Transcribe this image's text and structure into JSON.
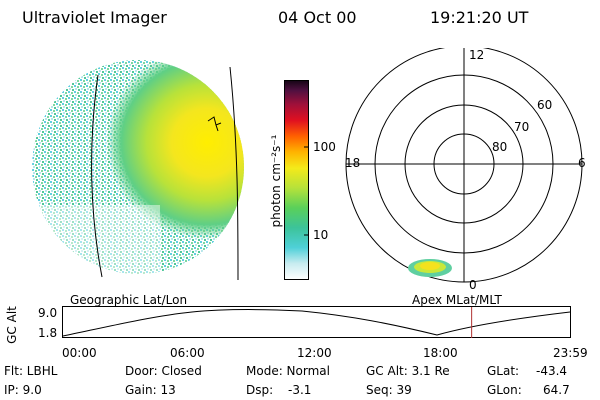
{
  "header": {
    "title": "Ultraviolet Imager",
    "date": "04 Oct 00",
    "time": "19:21:20 UT"
  },
  "colorbar": {
    "label": "photon cm⁻²s⁻¹",
    "ticks": [
      "100",
      "10"
    ]
  },
  "polar": {
    "mlt_labels": {
      "top": "12",
      "left": "18",
      "right": "6",
      "bottom": "0"
    },
    "lat_labels": [
      "60",
      "70",
      "80"
    ]
  },
  "timeline": {
    "left_caption": "Geographic Lat/Lon",
    "right_caption": "Apex MLat/MLT",
    "axis_label": "GC Alt",
    "y_ticks": [
      "9.0",
      "1.8"
    ],
    "x_ticks": [
      "00:00",
      "06:00",
      "12:00",
      "18:00",
      "23:59"
    ],
    "current_time_fraction": 0.806
  },
  "info": {
    "row1": {
      "flt": "Flt: LBHL",
      "door": "Door: Closed",
      "mode": "Mode: Normal",
      "gcalt": "GC Alt: 3.1 Re",
      "glat_label": "GLat:",
      "glat_value": "-43.4"
    },
    "row2": {
      "ip": "IP:  9.0",
      "gain": "Gain: 13",
      "dsp_label": "Dsp:",
      "dsp_value": "-3.1",
      "seq": "Seq: 39",
      "glon_label": "GLon:",
      "glon_value": "64.7"
    }
  }
}
